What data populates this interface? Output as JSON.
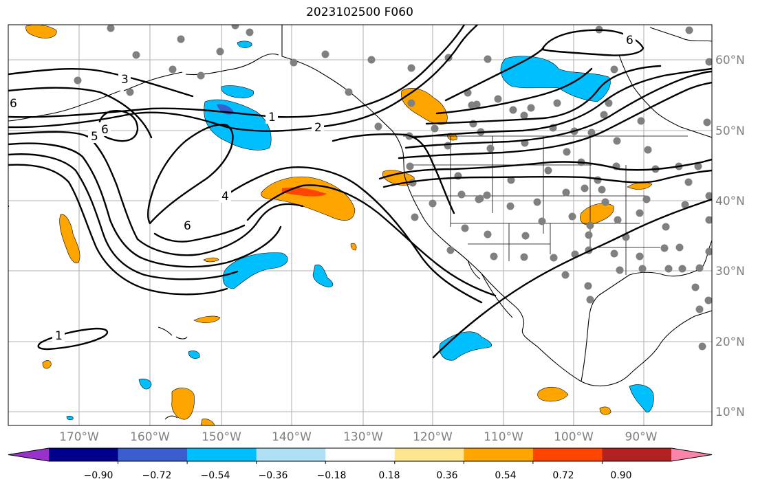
{
  "title": "2023102500 F060",
  "map": {
    "lon_ticks": [
      "170°W",
      "160°W",
      "150°W",
      "140°W",
      "130°W",
      "120°W",
      "110°W",
      "100°W",
      "90°W"
    ],
    "lat_ticks": [
      "60°N",
      "50°N",
      "40°N",
      "30°N",
      "20°N",
      "10°N"
    ],
    "contour_labels": [
      "1",
      "2",
      "3",
      "4",
      "5",
      "6",
      "6",
      "1",
      "6",
      "6"
    ]
  },
  "colorbar": {
    "labels": [
      "−0.90",
      "−0.72",
      "−0.54",
      "−0.36",
      "−0.18",
      "0.18",
      "0.36",
      "0.54",
      "0.72",
      "0.90"
    ],
    "colors": [
      "#9932cc",
      "#00008b",
      "#3a5fcd",
      "#00bfff",
      "#b0e0f6",
      "#ffffff",
      "#fce68f",
      "#ffa500",
      "#ff4500",
      "#b22222",
      "#f986a8"
    ]
  },
  "colors": {
    "grid": "#b3b3b3",
    "station_dot": "#808080",
    "contour": "#000000"
  }
}
